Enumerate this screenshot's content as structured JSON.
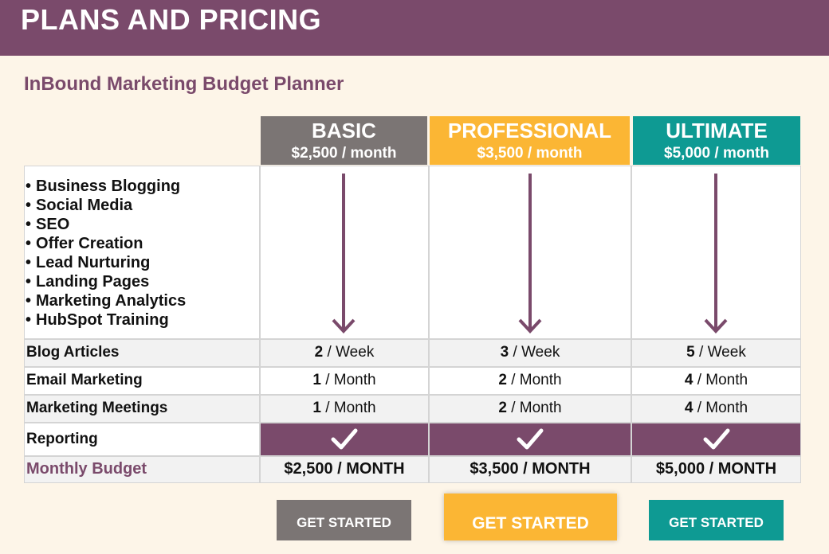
{
  "header": {
    "title": "PLANS AND PRICING"
  },
  "subtitle": "InBound Marketing Budget Planner",
  "colors": {
    "plum": "#7a4a6b",
    "basic": "#7b7574",
    "professional": "#fbb634",
    "ultimate": "#0e9a93"
  },
  "tiers": [
    {
      "name": "BASIC",
      "price": "$2,500 / month"
    },
    {
      "name": "PROFESSIONAL",
      "price": "$3,500 / month"
    },
    {
      "name": "ULTIMATE",
      "price": "$5,000 / month"
    }
  ],
  "features": [
    "Business Blogging",
    "Social Media",
    "SEO",
    "Offer Creation",
    "Lead Nurturing",
    "Landing Pages",
    "Marketing Analytics",
    "HubSpot Training"
  ],
  "rows": {
    "blog": {
      "label": "Blog Articles",
      "unit": "/ Week",
      "values": [
        "2",
        "3",
        "5"
      ]
    },
    "email": {
      "label": "Email Marketing",
      "unit": "/ Month",
      "values": [
        "1",
        "2",
        "4"
      ]
    },
    "meetings": {
      "label": "Marketing Meetings",
      "unit": "/ Month",
      "values": [
        "1",
        "2",
        "4"
      ]
    },
    "reporting": {
      "label": "Reporting",
      "icon": "checkmark-icon"
    },
    "budget": {
      "label": "Monthly Budget",
      "values": [
        "$2,500 / MONTH",
        "$3,500 / MONTH",
        "$5,000 / MONTH"
      ]
    }
  },
  "buttons": [
    "GET STARTED",
    "GET STARTED",
    "GET STARTED"
  ]
}
